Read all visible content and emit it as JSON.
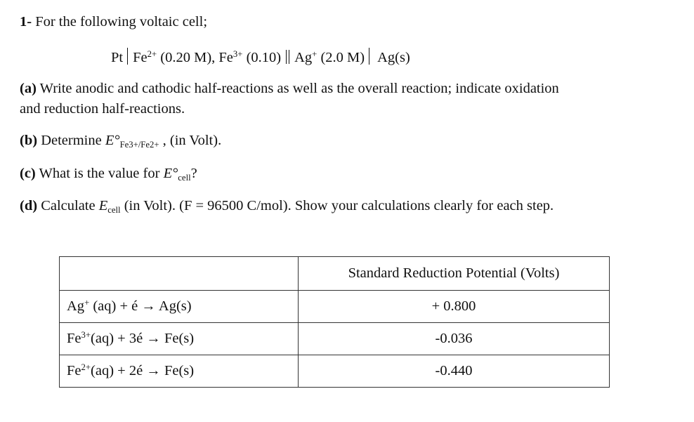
{
  "question": {
    "number": "1-",
    "intro": "For the following voltaic cell;"
  },
  "cell": {
    "anode": "Pt",
    "ion1": "Fe",
    "ion1_charge": "2+",
    "ion1_conc": "(0.20 M), ",
    "ion2": "Fe",
    "ion2_charge": "3+",
    "ion2_conc": "(0.10)",
    "ion3": "Ag",
    "ion3_charge": "+",
    "ion3_conc": "(2.0 M)",
    "cathode": "Ag(s)"
  },
  "parts": {
    "a": {
      "label": "(a)",
      "text1": " Write anodic and cathodic half-reactions as well as the overall reaction; indicate oxidation",
      "text2": "and reduction half-reactions."
    },
    "b": {
      "label": "(b)",
      "text": " Determine ",
      "E": "E°",
      "sub": "Fe3+/Fe2+",
      "tail": " , (in Volt)."
    },
    "c": {
      "label": "(c)",
      "text": " What is the value for ",
      "E": "E°",
      "sub": "cell",
      "tail": "?"
    },
    "d": {
      "label": "(d)",
      "text": " Calculate ",
      "E": "E",
      "sub": "cell",
      "tail": " (in Volt). (F = 96500 C/mol). Show your calculations clearly for each step."
    }
  },
  "table": {
    "header": "Standard Reduction Potential (Volts)",
    "rows": [
      {
        "ion": "Ag",
        "charge": "+",
        "reaction": " (aq) + é → Ag(s)",
        "value": "+ 0.800"
      },
      {
        "ion": "Fe",
        "charge": "3+",
        "reaction": "(aq) + 3é → Fe(s)",
        "value": "-0.036"
      },
      {
        "ion": "Fe",
        "charge": "2+",
        "reaction": "(aq) + 2é → Fe(s)",
        "value": "-0.440"
      }
    ]
  }
}
